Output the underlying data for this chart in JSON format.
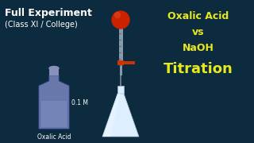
{
  "background_color": "#0d2b3e",
  "title_line1": "Full Experiment",
  "title_line2": "(Class XI / College)",
  "right_line1": "Oxalic Acid",
  "right_line2": "vs",
  "right_line3": "NaOH",
  "right_line4": "Titration",
  "bottle_label": "Oxalic Acid",
  "bottle_concentration": "0.1 M",
  "title_color": "#ffffff",
  "right_color_yellow": "#e8e820",
  "right_color_white": "#ffffff",
  "bulb_color": "#cc2200",
  "bulb_highlight": "#dd4422",
  "burette_gray": "#8899aa",
  "burette_dark": "#667788",
  "valve_color": "#cc3300",
  "valve_arm_color": "#cc3300",
  "flask_fill": "#ddeeff",
  "flask_edge": "#aabbcc",
  "bottle_body": "#6878aa",
  "bottle_dark": "#4858aa",
  "bottle_liquid": "#7888bb",
  "bottle_cap": "#8890bb",
  "label_color": "#ffffff"
}
